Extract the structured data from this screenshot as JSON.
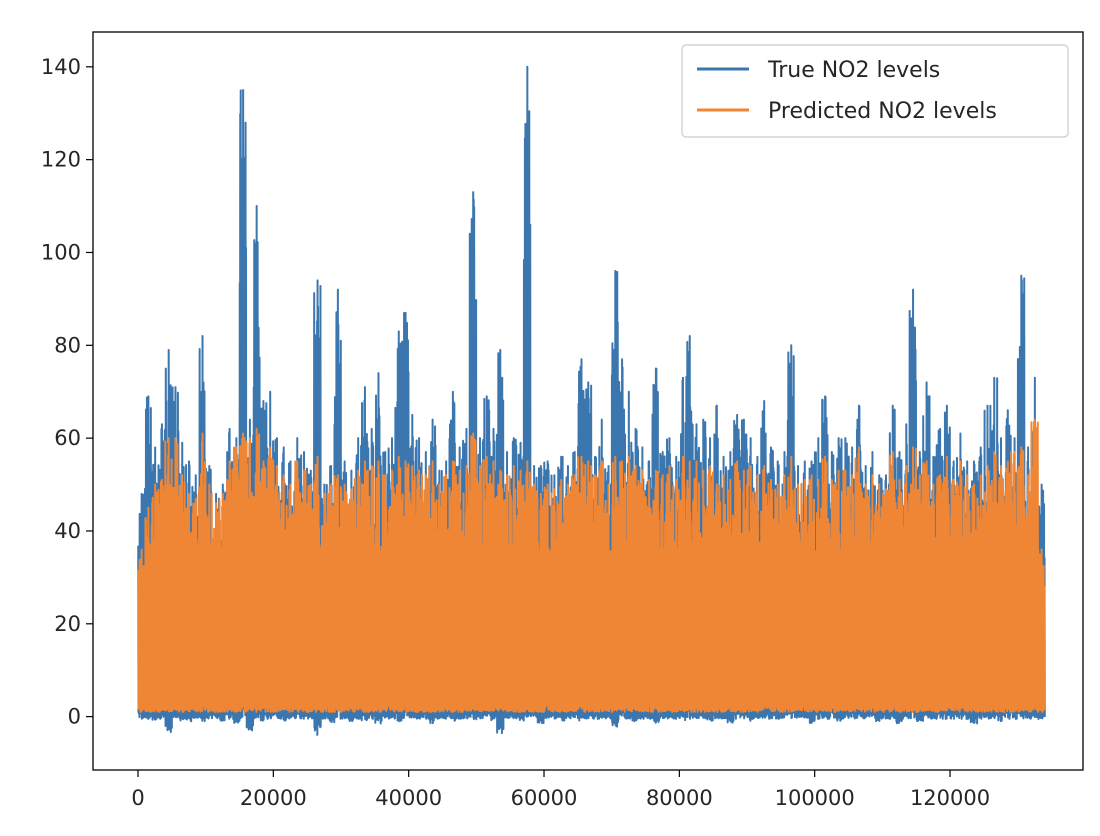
{
  "chart_data": {
    "type": "line",
    "title": "",
    "xlabel": "",
    "ylabel": "",
    "xlim": [
      -6650,
      139650
    ],
    "ylim": [
      -11.5,
      147.5
    ],
    "x_ticks": [
      0,
      20000,
      40000,
      60000,
      80000,
      100000,
      120000
    ],
    "x_tick_labels": [
      "0",
      "20000",
      "40000",
      "60000",
      "80000",
      "100000",
      "120000"
    ],
    "y_ticks": [
      0,
      20,
      40,
      60,
      80,
      100,
      120,
      140
    ],
    "y_tick_labels": [
      "0",
      "20",
      "40",
      "60",
      "80",
      "100",
      "120",
      "140"
    ],
    "grid": false,
    "legend_position": "top-right",
    "n_points": 133000,
    "x_step": 1000,
    "series": [
      {
        "name": "True NO2 levels",
        "color": "#3b76af",
        "baseline_floor_mean": -0.3,
        "envelope_max": [
          48,
          69,
          58,
          63,
          79,
          71,
          59,
          55,
          52,
          82,
          54,
          48,
          50,
          62,
          60,
          135,
          64,
          110,
          68,
          70,
          60,
          58,
          55,
          60,
          57,
          53,
          94,
          50,
          54,
          92,
          55,
          53,
          60,
          71,
          62,
          74,
          57,
          60,
          83,
          87,
          65,
          60,
          57,
          64,
          53,
          55,
          70,
          58,
          62,
          113,
          60,
          69,
          62,
          79,
          57,
          60,
          59,
          140,
          54,
          54,
          55,
          52,
          56,
          54,
          57,
          77,
          72,
          56,
          64,
          54,
          96,
          77,
          70,
          62,
          58,
          55,
          75,
          57,
          60,
          56,
          73,
          82,
          63,
          64,
          60,
          67,
          56,
          57,
          65,
          64,
          60,
          56,
          68,
          58,
          55,
          57,
          80,
          54,
          55,
          55,
          60,
          69,
          57,
          60,
          60,
          58,
          67,
          54,
          57,
          52,
          52,
          67,
          57,
          63,
          92,
          57,
          72,
          56,
          62,
          67,
          55,
          61,
          55,
          55,
          58,
          67,
          73,
          60,
          66,
          60,
          95,
          58,
          73,
          50
        ],
        "envelope_min": [
          -0.5,
          -0.5,
          -1.0,
          -0.5,
          -3.5,
          -0.5,
          -1.0,
          -1.0,
          -0.5,
          -1.0,
          -0.5,
          -0.5,
          -1.0,
          -0.5,
          -1.5,
          -0.5,
          -3.0,
          -0.5,
          -1.0,
          -0.5,
          -0.5,
          -1.0,
          -0.5,
          -0.5,
          -0.5,
          -0.5,
          -4.0,
          -0.5,
          -1.5,
          -0.5,
          -0.5,
          -1.0,
          -0.5,
          -1.0,
          -0.5,
          -1.5,
          -0.5,
          -0.5,
          -1.0,
          -0.5,
          -0.5,
          -0.5,
          -0.5,
          -1.5,
          -0.5,
          -0.5,
          -1.0,
          -0.5,
          -0.5,
          -1.0,
          -0.5,
          -0.5,
          -1.0,
          -4.0,
          -0.5,
          -0.5,
          -1.0,
          -0.5,
          -0.5,
          -1.5,
          -0.5,
          -0.5,
          -1.0,
          -0.5,
          -0.5,
          -1.0,
          -0.5,
          -0.5,
          -0.5,
          -0.5,
          -3.0,
          -0.5,
          -0.5,
          -1.0,
          -0.5,
          -0.5,
          -1.5,
          -0.5,
          -0.5,
          -0.5,
          -1.0,
          -0.5,
          -0.5,
          -0.5,
          -1.0,
          -0.5,
          -0.5,
          -1.5,
          -0.5,
          -0.5,
          -1.0,
          -0.5,
          -0.5,
          -0.5,
          -0.5,
          -0.5,
          -0.5,
          -0.5,
          -0.5,
          -1.5,
          -0.5,
          -0.5,
          -0.5,
          -1.0,
          -0.5,
          -0.5,
          -0.5,
          -0.5,
          -0.5,
          -1.0,
          -0.5,
          -0.5,
          -1.5,
          -0.5,
          -0.5,
          -1.0,
          -0.5,
          -0.5,
          -0.5,
          -0.5,
          -0.5,
          -0.5,
          -0.5,
          -1.5,
          -0.5,
          -0.5,
          -0.5,
          -1.0,
          -0.5,
          -0.5,
          -0.5,
          -0.5,
          -0.5,
          -0.5
        ]
      },
      {
        "name": "Predicted NO2 levels",
        "color": "#ef8636",
        "envelope_max": [
          36,
          45,
          50,
          51,
          60,
          60,
          52,
          48,
          47,
          61,
          50,
          46,
          48,
          55,
          58,
          61,
          60,
          62,
          55,
          58,
          54,
          52,
          50,
          55,
          53,
          50,
          56,
          48,
          50,
          52,
          50,
          49,
          53,
          55,
          54,
          55,
          52,
          53,
          56,
          55,
          54,
          53,
          52,
          55,
          50,
          52,
          55,
          53,
          54,
          61,
          54,
          56,
          55,
          53,
          52,
          54,
          53,
          55,
          50,
          48,
          50,
          49,
          51,
          50,
          52,
          56,
          55,
          52,
          55,
          50,
          56,
          55,
          56,
          54,
          53,
          51,
          53,
          52,
          54,
          51,
          56,
          55,
          55,
          53,
          54,
          50,
          52,
          51,
          55,
          53,
          54,
          52,
          54,
          51,
          50,
          52,
          56,
          50,
          51,
          52,
          51,
          56,
          51,
          53,
          53,
          52,
          58,
          50,
          52,
          50,
          49,
          57,
          51,
          54,
          58,
          52,
          55,
          50,
          52,
          56,
          51,
          55,
          52,
          50,
          52,
          54,
          57,
          54,
          55,
          57,
          58,
          52,
          64,
          36
        ],
        "envelope_min": [
          1.0,
          1.0,
          1.0,
          1.0,
          1.0,
          1.0,
          1.0,
          1.0,
          1.0,
          1.0,
          1.0,
          1.0,
          1.0,
          1.0,
          1.0,
          1.0,
          1.0,
          1.0,
          1.0,
          1.0,
          1.0,
          1.0,
          1.0,
          1.0,
          1.0,
          1.0,
          1.0,
          1.0,
          1.0,
          1.0,
          1.0,
          1.0,
          1.0,
          1.0,
          1.0,
          1.0,
          1.0,
          1.0,
          1.0,
          1.0,
          1.0,
          1.0,
          1.0,
          1.0,
          1.0,
          1.0,
          1.0,
          1.0,
          1.0,
          1.0,
          1.0,
          1.0,
          1.0,
          1.0,
          1.0,
          1.0,
          1.0,
          1.0,
          1.0,
          1.0,
          1.0,
          1.0,
          1.0,
          1.0,
          1.0,
          1.0,
          1.0,
          1.0,
          1.0,
          1.0,
          1.0,
          1.0,
          1.0,
          1.0,
          1.0,
          1.0,
          1.0,
          1.0,
          1.0,
          1.0,
          1.0,
          1.0,
          1.0,
          1.0,
          1.0,
          1.0,
          1.0,
          1.0,
          1.0,
          1.0,
          1.0,
          1.0,
          1.0,
          1.0,
          1.0,
          1.0,
          1.0,
          1.0,
          1.0,
          1.0,
          1.0,
          1.0,
          1.0,
          1.0,
          1.0,
          1.0,
          1.0,
          1.0,
          1.0,
          1.0,
          1.0,
          1.0,
          1.0,
          1.0,
          1.0,
          1.0,
          1.0,
          1.0,
          1.0,
          1.0,
          1.0,
          1.0,
          1.0,
          1.0,
          1.0,
          1.0,
          1.0,
          1.0,
          1.0,
          1.0,
          1.0,
          1.0,
          1.0,
          1.0
        ]
      }
    ]
  }
}
